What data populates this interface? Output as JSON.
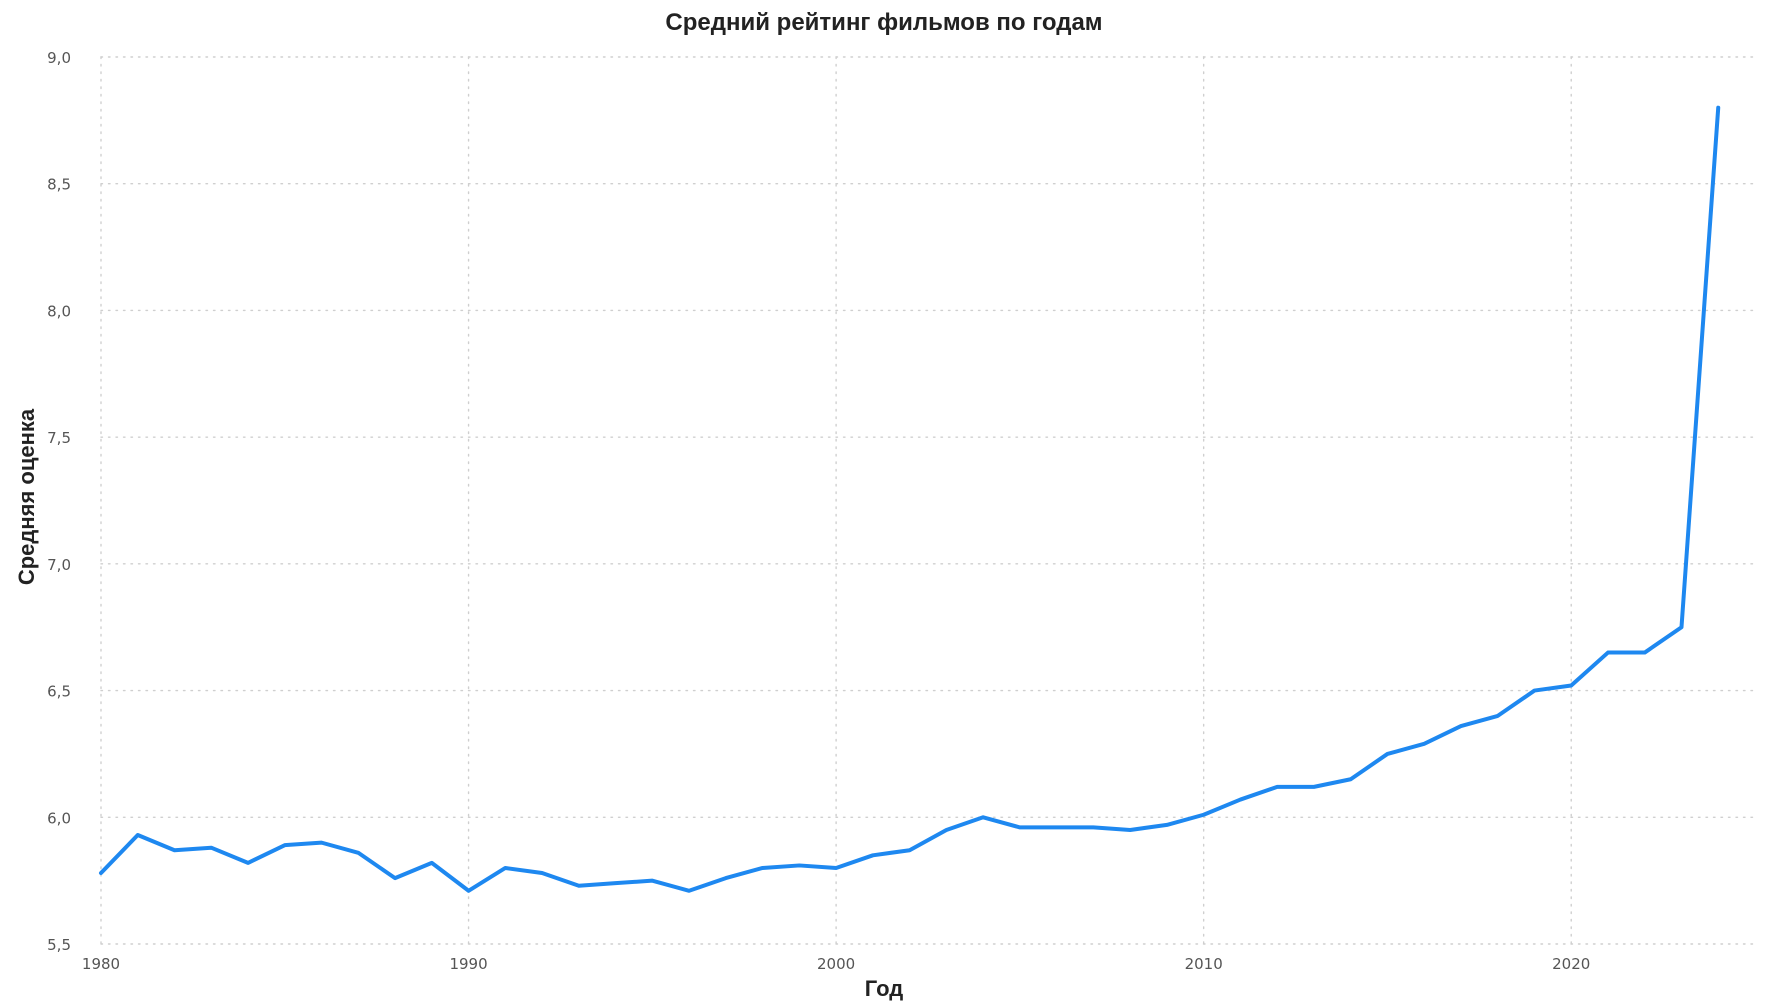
{
  "chart_data": {
    "type": "line",
    "title": "Средний рейтинг фильмов по годам",
    "xlabel": "Год",
    "ylabel": "Средняя оценка",
    "xlim": [
      1980,
      2025
    ],
    "ylim": [
      5.5,
      9.0
    ],
    "x_ticks": [
      1980,
      1990,
      2000,
      2010,
      2020
    ],
    "x_tick_labels": [
      "1980",
      "1990",
      "2000",
      "2010",
      "2020"
    ],
    "y_ticks": [
      5.5,
      6.0,
      6.5,
      7.0,
      7.5,
      8.0,
      8.5,
      9.0
    ],
    "y_tick_labels": [
      "5,5",
      "6,0",
      "6,5",
      "7,0",
      "7,5",
      "8,0",
      "8,5",
      "9,0"
    ],
    "grid": true,
    "legend": "none",
    "colors": {
      "line": "#1e88f0",
      "grid": "#cfcfcf",
      "text": "#222222",
      "ticks": "#555555"
    },
    "series": [
      {
        "x": [
          1980,
          1981,
          1982,
          1983,
          1984,
          1985,
          1986,
          1987,
          1988,
          1989,
          1990,
          1991,
          1992,
          1993,
          1994,
          1995,
          1996,
          1997,
          1998,
          1999,
          2000,
          2001,
          2002,
          2003,
          2004,
          2005,
          2006,
          2007,
          2008,
          2009,
          2010,
          2011,
          2012,
          2013,
          2014,
          2015,
          2016,
          2017,
          2018,
          2019,
          2020,
          2021,
          2022,
          2023,
          2024
        ],
        "values": [
          5.78,
          5.93,
          5.87,
          5.88,
          5.82,
          5.89,
          5.9,
          5.86,
          5.76,
          5.82,
          5.71,
          5.8,
          5.78,
          5.73,
          5.74,
          5.75,
          5.71,
          5.76,
          5.8,
          5.81,
          5.8,
          5.85,
          5.87,
          5.95,
          6.0,
          5.96,
          5.96,
          5.96,
          5.95,
          5.97,
          6.01,
          6.07,
          6.12,
          6.12,
          6.15,
          6.25,
          6.29,
          6.36,
          6.4,
          6.5,
          6.52,
          6.65,
          6.65,
          6.75,
          8.8
        ]
      }
    ]
  }
}
